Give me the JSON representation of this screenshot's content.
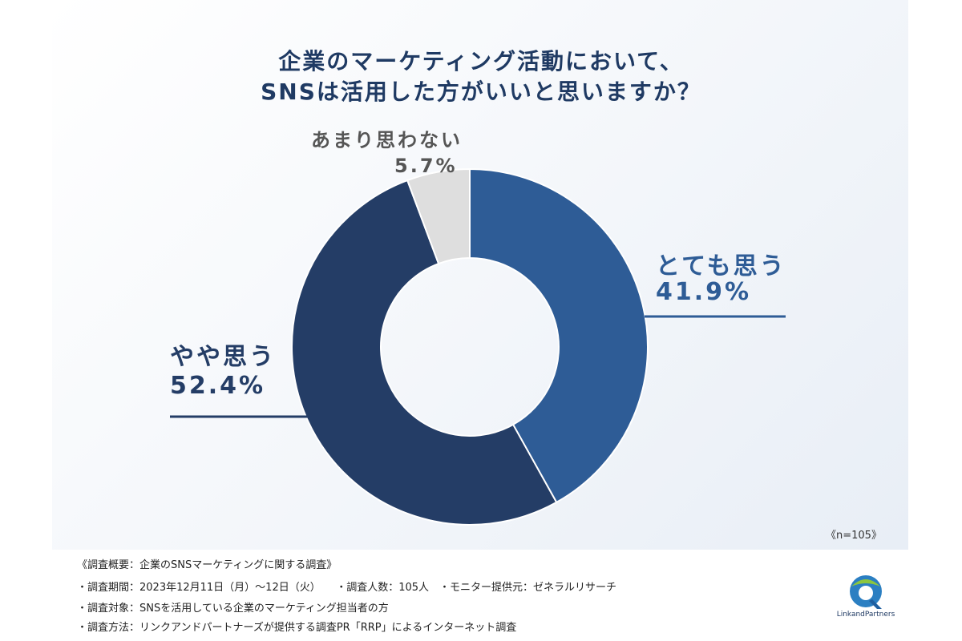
{
  "chart_data": {
    "type": "pie",
    "variant": "donut",
    "title": [
      "企業のマーケティング活動において、",
      "SNSは活用した方がいいと思いますか？"
    ],
    "slices": [
      {
        "label": "とても思う",
        "value": 41.9,
        "display": "41.9%",
        "color": "#2e5c96"
      },
      {
        "label": "やや思う",
        "value": 52.4,
        "display": "52.4%",
        "color": "#243d66"
      },
      {
        "label": "あまり思わない",
        "value": 5.7,
        "display": "5.7%",
        "color": "#dedede"
      }
    ],
    "label_colors": [
      "#2e5c96",
      "#243d66",
      "#555555"
    ],
    "sample_note": "《n=105》"
  },
  "survey": {
    "lines": [
      "《調査概要：企業のSNSマーケティングに関する調査》",
      "・調査期間：2023年12月11日（月）～12日（火）　　・調査人数：105人　・モニター提供元：ゼネラルリサーチ",
      "・調査対象：SNSを活用している企業のマーケティング担当者の方",
      "・調査方法：リンクアンドパートナーズが提供する調査PR「RRP」によるインターネット調査"
    ]
  },
  "logo": {
    "text": "LinkandPartners"
  }
}
